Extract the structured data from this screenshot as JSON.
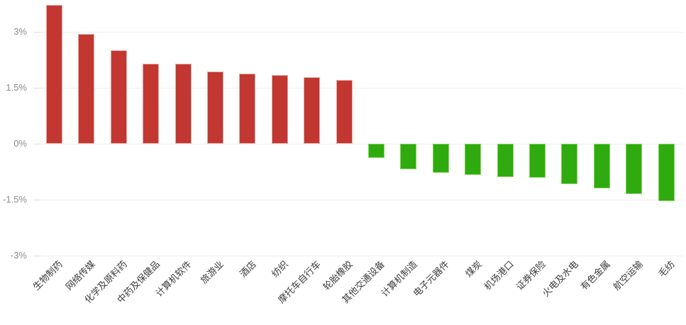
{
  "chart_data": {
    "type": "bar",
    "title": "",
    "xlabel": "",
    "ylabel": "",
    "unit": "%",
    "categories": [
      "生物制药",
      "网络传媒",
      "化学及原料药",
      "中药及保健品",
      "计算机软件",
      "旅游业",
      "酒店",
      "纺织",
      "摩托车自行车",
      "轮胎橡胶",
      "其他交通设备",
      "计算机制造",
      "电子元器件",
      "煤炭",
      "机场港口",
      "证券保险",
      "火电及水电",
      "有色金属",
      "航空运输",
      "毛纺"
    ],
    "values": [
      3.71,
      2.94,
      2.5,
      2.15,
      2.15,
      1.94,
      1.88,
      1.85,
      1.79,
      1.71,
      -0.38,
      -0.69,
      -0.77,
      -0.84,
      -0.9,
      -0.91,
      -1.08,
      -1.2,
      -1.35,
      -1.54
    ],
    "y_ticks": [
      {
        "label": "3%",
        "value": 3
      },
      {
        "label": "1.5%",
        "value": 1.5
      },
      {
        "label": "0%",
        "value": 0
      },
      {
        "label": "-1.5%",
        "value": -1.5
      },
      {
        "label": "-3%",
        "value": -3
      }
    ],
    "ylim": [
      -3,
      3.9
    ],
    "grid": true,
    "legend": false,
    "colors": {
      "positive_bar": "#c23731",
      "positive_bar_border": "#dfaca5",
      "negative_bar": "#2fab0f",
      "negative_bar_border": "#83d55c",
      "gridline": "#eeeeee",
      "tick": "#dddddd",
      "y_label_text": "#8c8c8c",
      "x_label_text": "#3d3d3d"
    }
  }
}
